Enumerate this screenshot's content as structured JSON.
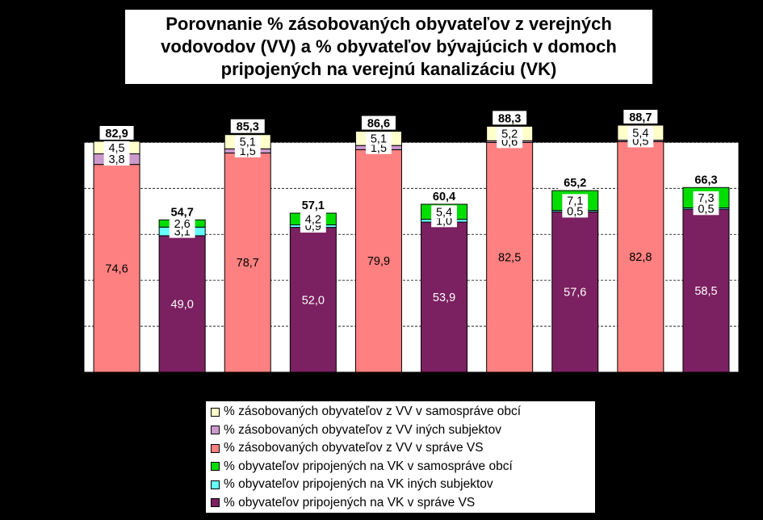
{
  "chart_data": {
    "type": "bar",
    "stacked": true,
    "title": "Porovnanie %  zásobovaných obyvateľov z verejných\nvodovodov (VV) a %  obyvateľov bývajúcich v domoch\npripojených na verejnú kanalizáciu (VK)",
    "ylim": [
      0,
      100
    ],
    "grid": true,
    "legend_position": "bottom",
    "groups": [
      {
        "total_label": "82,9",
        "segments": [
          {
            "series": 2,
            "value": 74.6,
            "label": "74,6"
          },
          {
            "series": 1,
            "value": 3.8,
            "label": "3,8"
          },
          {
            "series": 0,
            "value": 4.5,
            "label": "4,5"
          }
        ]
      },
      {
        "total_label": "54,7",
        "segments": [
          {
            "series": 5,
            "value": 49.0,
            "label": "49,0"
          },
          {
            "series": 4,
            "value": 3.1,
            "label": "3,1"
          },
          {
            "series": 3,
            "value": 2.6,
            "label": "2,6"
          }
        ]
      },
      {
        "total_label": "85,3",
        "segments": [
          {
            "series": 2,
            "value": 78.7,
            "label": "78,7"
          },
          {
            "series": 1,
            "value": 1.5,
            "label": "1,5"
          },
          {
            "series": 0,
            "value": 5.1,
            "label": "5,1"
          }
        ]
      },
      {
        "total_label": "57,1",
        "segments": [
          {
            "series": 5,
            "value": 52.0,
            "label": "52,0"
          },
          {
            "series": 4,
            "value": 0.9,
            "label": "0,9"
          },
          {
            "series": 3,
            "value": 4.2,
            "label": "4,2"
          }
        ]
      },
      {
        "total_label": "86,6",
        "segments": [
          {
            "series": 2,
            "value": 79.9,
            "label": "79,9"
          },
          {
            "series": 1,
            "value": 1.5,
            "label": "1,5"
          },
          {
            "series": 0,
            "value": 5.1,
            "label": "5,1"
          }
        ]
      },
      {
        "total_label": "60,4",
        "segments": [
          {
            "series": 5,
            "value": 53.9,
            "label": "53,9"
          },
          {
            "series": 4,
            "value": 1.0,
            "label": "1,0"
          },
          {
            "series": 3,
            "value": 5.4,
            "label": "5,4"
          }
        ]
      },
      {
        "total_label": "88,3",
        "segments": [
          {
            "series": 2,
            "value": 82.5,
            "label": "82,5"
          },
          {
            "series": 1,
            "value": 0.6,
            "label": "0,6"
          },
          {
            "series": 0,
            "value": 5.2,
            "label": "5,2"
          }
        ]
      },
      {
        "total_label": "65,2",
        "segments": [
          {
            "series": 5,
            "value": 57.6,
            "label": "57,6"
          },
          {
            "series": 4,
            "value": 0.5,
            "label": "0,5"
          },
          {
            "series": 3,
            "value": 7.1,
            "label": "7,1"
          }
        ]
      },
      {
        "total_label": "88,7",
        "segments": [
          {
            "series": 2,
            "value": 82.8,
            "label": "82,8"
          },
          {
            "series": 1,
            "value": 0.5,
            "label": "0,5"
          },
          {
            "series": 0,
            "value": 5.4,
            "label": "5,4"
          }
        ]
      },
      {
        "total_label": "66,3",
        "segments": [
          {
            "series": 5,
            "value": 58.5,
            "label": "58,5"
          },
          {
            "series": 4,
            "value": 0.5,
            "label": "0,5"
          },
          {
            "series": 3,
            "value": 7.3,
            "label": "7,3"
          }
        ]
      }
    ],
    "series": [
      {
        "name": "% zásobovaných obyvateľov z VV v samospráve obcí",
        "color": "#FFFFCC"
      },
      {
        "name": "% zásobovaných obyvateľov z VV iných subjektov",
        "color": "#CC99CC"
      },
      {
        "name": "% zásobovaných obyvateľov z VV v správe VS",
        "color": "#FF8080"
      },
      {
        "name": "% obyvateľov pripojených na VK v samospráve obcí",
        "color": "#00DD00"
      },
      {
        "name": "% obyvateľov pripojených na VK iných subjektov",
        "color": "#66FFFF"
      },
      {
        "name": "% obyvateľov pripojených na VK v správe VS",
        "color": "#7B2060"
      }
    ]
  }
}
